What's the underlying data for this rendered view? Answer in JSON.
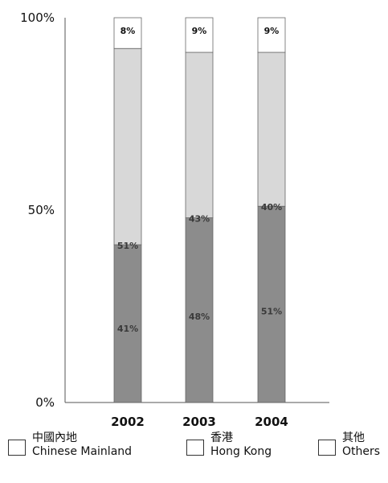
{
  "chart_data": {
    "type": "stacked_bar_percent",
    "categories": [
      "2002",
      "2003",
      "2004"
    ],
    "ylim": [
      0,
      100
    ],
    "y_ticks": [
      "0%",
      "50%",
      "100%"
    ],
    "series": [
      {
        "name": "Chinese Mainland",
        "name_zh": "中國內地",
        "values": [
          41,
          48,
          51
        ],
        "labels": [
          "41%",
          "48%",
          "51%"
        ],
        "color": "#8c8c8c"
      },
      {
        "name": "Hong Kong",
        "name_zh": "香港",
        "values": [
          51,
          43,
          40
        ],
        "labels": [
          "51%",
          "43%",
          "40%"
        ],
        "color": "#d8d8d8"
      },
      {
        "name": "Others",
        "name_zh": "其他",
        "values": [
          8,
          9,
          9
        ],
        "labels": [
          "8%",
          "9%",
          "9%"
        ],
        "color": "#ffffff"
      }
    ],
    "legend": [
      {
        "zh": "中國內地",
        "en": "Chinese Mainland"
      },
      {
        "zh": "香港",
        "en": "Hong Kong"
      },
      {
        "zh": "其他",
        "en": "Others"
      }
    ]
  }
}
